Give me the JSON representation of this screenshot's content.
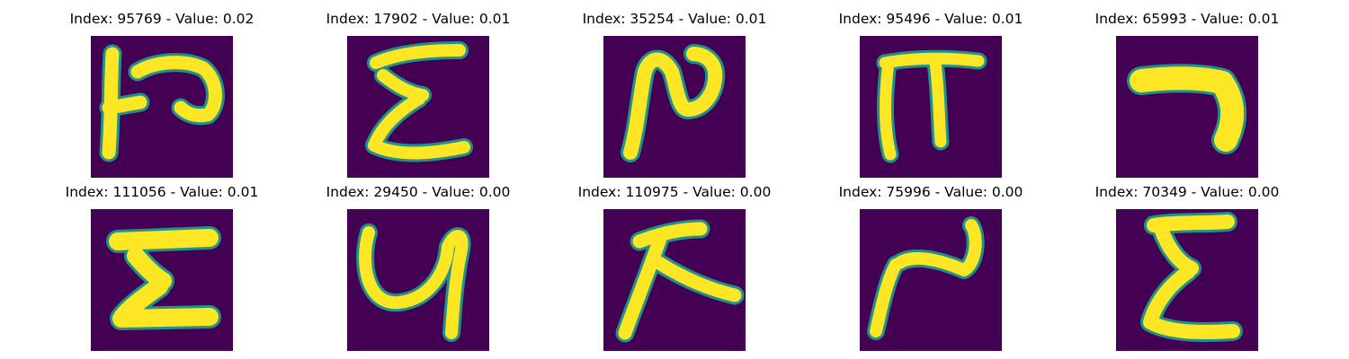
{
  "colors": {
    "background": "#440154",
    "mid": "#21918c",
    "foreground": "#fde725"
  },
  "chart_data": {
    "type": "image-grid",
    "colormap": "viridis",
    "axes": "off",
    "items": [
      {
        "index": 95769,
        "value": "0.02",
        "title": "Index: 95769 - Value: 0.02",
        "glyph": "glyph-95769"
      },
      {
        "index": 17902,
        "value": "0.01",
        "title": "Index: 17902 - Value: 0.01",
        "glyph": "glyph-17902"
      },
      {
        "index": 35254,
        "value": "0.01",
        "title": "Index: 35254 - Value: 0.01",
        "glyph": "glyph-35254"
      },
      {
        "index": 95496,
        "value": "0.01",
        "title": "Index: 95496 - Value: 0.01",
        "glyph": "glyph-95496"
      },
      {
        "index": 65993,
        "value": "0.01",
        "title": "Index: 65993 - Value: 0.01",
        "glyph": "glyph-65993"
      },
      {
        "index": 111056,
        "value": "0.01",
        "title": "Index: 111056 - Value: 0.01",
        "glyph": "glyph-111056"
      },
      {
        "index": 29450,
        "value": "0.00",
        "title": "Index: 29450 - Value: 0.00",
        "glyph": "glyph-29450"
      },
      {
        "index": 110975,
        "value": "0.00",
        "title": "Index: 110975 - Value: 0.00",
        "glyph": "glyph-110975"
      },
      {
        "index": 75996,
        "value": "0.00",
        "title": "Index: 75996 - Value: 0.00",
        "glyph": "glyph-75996"
      },
      {
        "index": 70349,
        "value": "0.00",
        "title": "Index: 70349 - Value: 0.00",
        "glyph": "glyph-70349"
      }
    ]
  }
}
